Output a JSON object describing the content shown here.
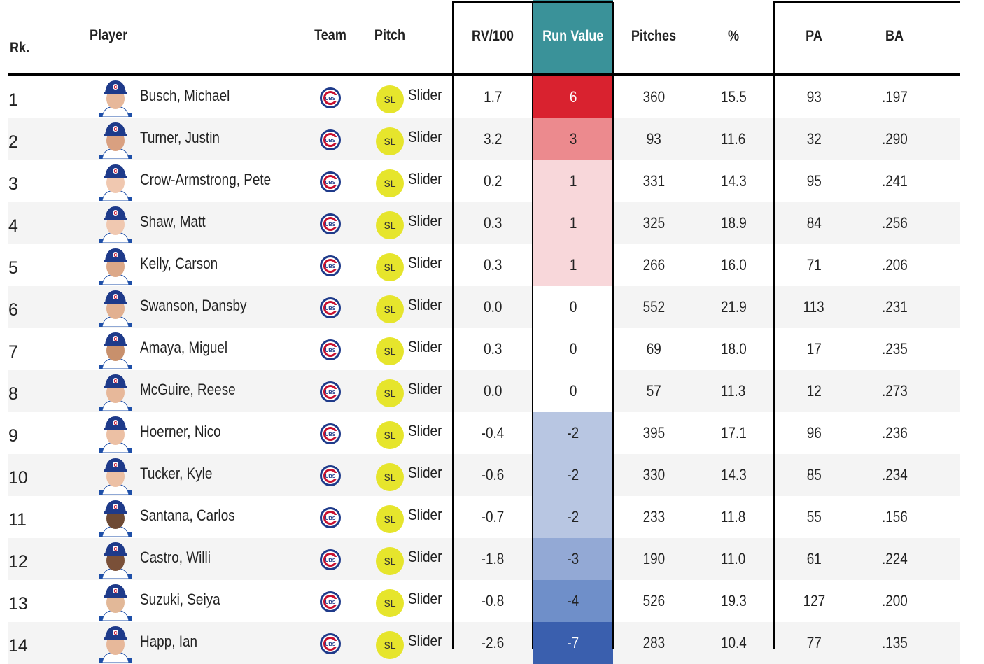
{
  "table": {
    "headers": {
      "rank": "Rk.",
      "player": "Player",
      "team": "Team",
      "pitch": "Pitch",
      "rv100": "RV/100",
      "run_value": "Run Value",
      "pitches": "Pitches",
      "pct": "%",
      "pa": "PA",
      "ba": "BA"
    },
    "colors": {
      "sorted_header": "#3a9299",
      "pitch_badge": "#e6e52c",
      "team_logo_blue": "#1e3a8a",
      "team_logo_red": "#c8102e"
    },
    "rows": [
      {
        "rank": "1",
        "player": "Busch, Michael",
        "team": "cubs-logo",
        "pitch_code": "SL",
        "pitch": "Slider",
        "rv100": "1.7",
        "run_value": "6",
        "run_value_color": "#d9222f",
        "pitches": "360",
        "pct": "15.5",
        "pa": "93",
        "ba": ".197",
        "skin": "#e7b89a"
      },
      {
        "rank": "2",
        "player": "Turner, Justin",
        "team": "cubs-logo",
        "pitch_code": "SL",
        "pitch": "Slider",
        "rv100": "3.2",
        "run_value": "3",
        "run_value_color": "#ec8a8e",
        "pitches": "93",
        "pct": "11.6",
        "pa": "32",
        "ba": ".290",
        "skin": "#d9a080"
      },
      {
        "rank": "3",
        "player": "Crow-Armstrong, Pete",
        "team": "cubs-logo",
        "pitch_code": "SL",
        "pitch": "Slider",
        "rv100": "0.2",
        "run_value": "1",
        "run_value_color": "#f8d7da",
        "pitches": "331",
        "pct": "14.3",
        "pa": "95",
        "ba": ".241",
        "skin": "#f0c8b0"
      },
      {
        "rank": "4",
        "player": "Shaw, Matt",
        "team": "cubs-logo",
        "pitch_code": "SL",
        "pitch": "Slider",
        "rv100": "0.3",
        "run_value": "1",
        "run_value_color": "#f8d7da",
        "pitches": "325",
        "pct": "18.9",
        "pa": "84",
        "ba": ".256",
        "skin": "#f0c8b0"
      },
      {
        "rank": "5",
        "player": "Kelly, Carson",
        "team": "cubs-logo",
        "pitch_code": "SL",
        "pitch": "Slider",
        "rv100": "0.3",
        "run_value": "1",
        "run_value_color": "#f8d7da",
        "pitches": "266",
        "pct": "16.0",
        "pa": "71",
        "ba": ".206",
        "skin": "#dca888"
      },
      {
        "rank": "6",
        "player": "Swanson, Dansby",
        "team": "cubs-logo",
        "pitch_code": "SL",
        "pitch": "Slider",
        "rv100": "0.0",
        "run_value": "0",
        "run_value_color": "#ffffff",
        "pitches": "552",
        "pct": "21.9",
        "pa": "113",
        "ba": ".231",
        "skin": "#e2b090"
      },
      {
        "rank": "7",
        "player": "Amaya, Miguel",
        "team": "cubs-logo",
        "pitch_code": "SL",
        "pitch": "Slider",
        "rv100": "0.3",
        "run_value": "0",
        "run_value_color": "#ffffff",
        "pitches": "69",
        "pct": "18.0",
        "pa": "17",
        "ba": ".235",
        "skin": "#c8906c"
      },
      {
        "rank": "8",
        "player": "McGuire, Reese",
        "team": "cubs-logo",
        "pitch_code": "SL",
        "pitch": "Slider",
        "rv100": "0.0",
        "run_value": "0",
        "run_value_color": "#ffffff",
        "pitches": "57",
        "pct": "11.3",
        "pa": "12",
        "ba": ".273",
        "skin": "#e7b89a"
      },
      {
        "rank": "9",
        "player": "Hoerner, Nico",
        "team": "cubs-logo",
        "pitch_code": "SL",
        "pitch": "Slider",
        "rv100": "-0.4",
        "run_value": "-2",
        "run_value_color": "#b8c6e2",
        "pitches": "395",
        "pct": "17.1",
        "pa": "96",
        "ba": ".236",
        "skin": "#ecc0a4"
      },
      {
        "rank": "10",
        "player": "Tucker, Kyle",
        "team": "cubs-logo",
        "pitch_code": "SL",
        "pitch": "Slider",
        "rv100": "-0.6",
        "run_value": "-2",
        "run_value_color": "#b8c6e2",
        "pitches": "330",
        "pct": "14.3",
        "pa": "85",
        "ba": ".234",
        "skin": "#ecc0a4"
      },
      {
        "rank": "11",
        "player": "Santana, Carlos",
        "team": "cubs-logo",
        "pitch_code": "SL",
        "pitch": "Slider",
        "rv100": "-0.7",
        "run_value": "-2",
        "run_value_color": "#b8c6e2",
        "pitches": "233",
        "pct": "11.8",
        "pa": "55",
        "ba": ".156",
        "skin": "#6e4a34"
      },
      {
        "rank": "12",
        "player": "Castro, Willi",
        "team": "cubs-logo",
        "pitch_code": "SL",
        "pitch": "Slider",
        "rv100": "-1.8",
        "run_value": "-3",
        "run_value_color": "#93a9d5",
        "pitches": "190",
        "pct": "11.0",
        "pa": "61",
        "ba": ".224",
        "skin": "#7a5038"
      },
      {
        "rank": "13",
        "player": "Suzuki, Seiya",
        "team": "cubs-logo",
        "pitch_code": "SL",
        "pitch": "Slider",
        "rv100": "-0.8",
        "run_value": "-4",
        "run_value_color": "#6f8fc9",
        "pitches": "526",
        "pct": "19.3",
        "pa": "127",
        "ba": ".200",
        "skin": "#e2b898"
      },
      {
        "rank": "14",
        "player": "Happ, Ian",
        "team": "cubs-logo",
        "pitch_code": "SL",
        "pitch": "Slider",
        "rv100": "-2.6",
        "run_value": "-7",
        "run_value_color": "#3a5fae",
        "pitches": "283",
        "pct": "10.4",
        "pa": "77",
        "ba": ".135",
        "skin": "#e7b89a"
      }
    ]
  }
}
